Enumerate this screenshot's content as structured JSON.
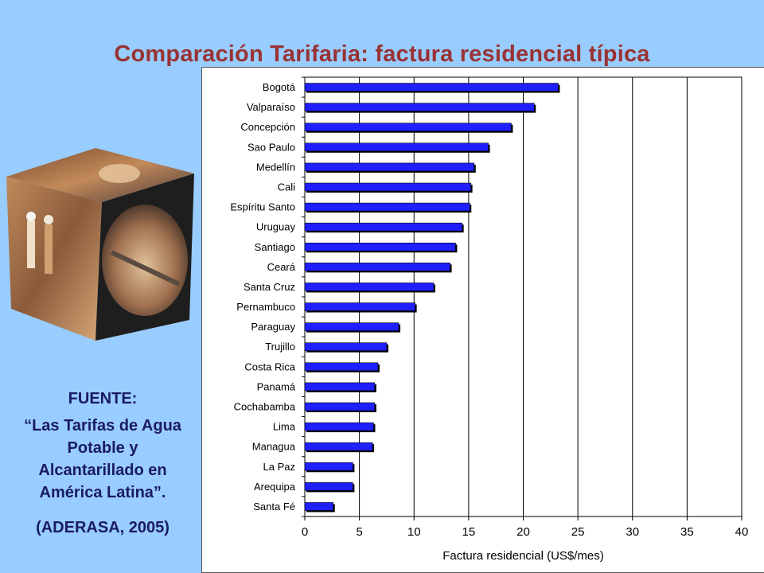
{
  "slide": {
    "title": "Comparación Tarifaria: factura residencial típica",
    "source_label": "FUENTE:",
    "source_title": "“Las Tarifas de Agua Potable y Alcantarillado en América Latina”.",
    "source_citation": "(ADERASA, 2005)"
  },
  "colors": {
    "background": "#99ccff",
    "title": "#993333",
    "source_text": "#1a1a66",
    "bar": "#1f1fff"
  },
  "decor": {
    "image": "photo-cube-icon"
  },
  "chart_data": {
    "type": "bar",
    "orientation": "horizontal",
    "categories": [
      "Bogotá",
      "Valparaíso",
      "Concepción",
      "Sao Paulo",
      "Medellín",
      "Cali",
      "Espíritu Santo",
      "Uruguay",
      "Santiago",
      "Ceará",
      "Santa Cruz",
      "Pernambuco",
      "Paraguay",
      "Trujillo",
      "Costa Rica",
      "Panamá",
      "Cochabamba",
      "Lima",
      "Managua",
      "La Paz",
      "Arequipa",
      "Santa Fé"
    ],
    "values": [
      23.2,
      21.0,
      18.9,
      16.8,
      15.5,
      15.2,
      15.1,
      14.4,
      13.8,
      13.3,
      11.8,
      10.1,
      8.6,
      7.5,
      6.7,
      6.4,
      6.4,
      6.3,
      6.2,
      4.4,
      4.4,
      2.6
    ],
    "xlabel": "Factura residencial (US$/mes)",
    "ylabel": "",
    "title": "",
    "xlim": [
      0,
      40
    ],
    "xticks": [
      "0",
      "5",
      "10",
      "15",
      "20",
      "25",
      "30",
      "35",
      "40"
    ],
    "grid": "vertical"
  }
}
